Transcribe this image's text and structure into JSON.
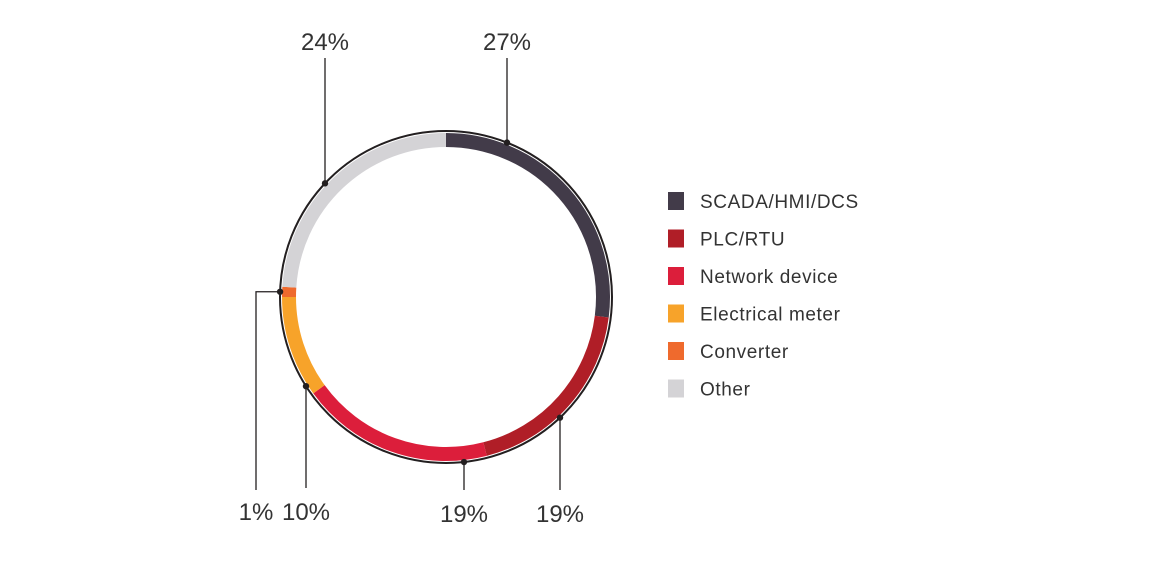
{
  "chart_data": {
    "type": "donut",
    "series": [
      {
        "label": "SCADA/HMI/DCS",
        "value": 27,
        "display": "27%",
        "color": "#423b49"
      },
      {
        "label": "PLC/RTU",
        "value": 19,
        "display": "19%",
        "color": "#b01e27"
      },
      {
        "label": "Network device",
        "value": 19,
        "display": "19%",
        "color": "#dc1e3b"
      },
      {
        "label": "Electrical meter",
        "value": 10,
        "display": "10%",
        "color": "#f7a32a"
      },
      {
        "label": "Converter",
        "value": 1,
        "display": "1%",
        "color": "#ef6a2d"
      },
      {
        "label": "Other",
        "value": 24,
        "display": "24%",
        "color": "#d4d3d6"
      }
    ],
    "legend_position": "right"
  }
}
